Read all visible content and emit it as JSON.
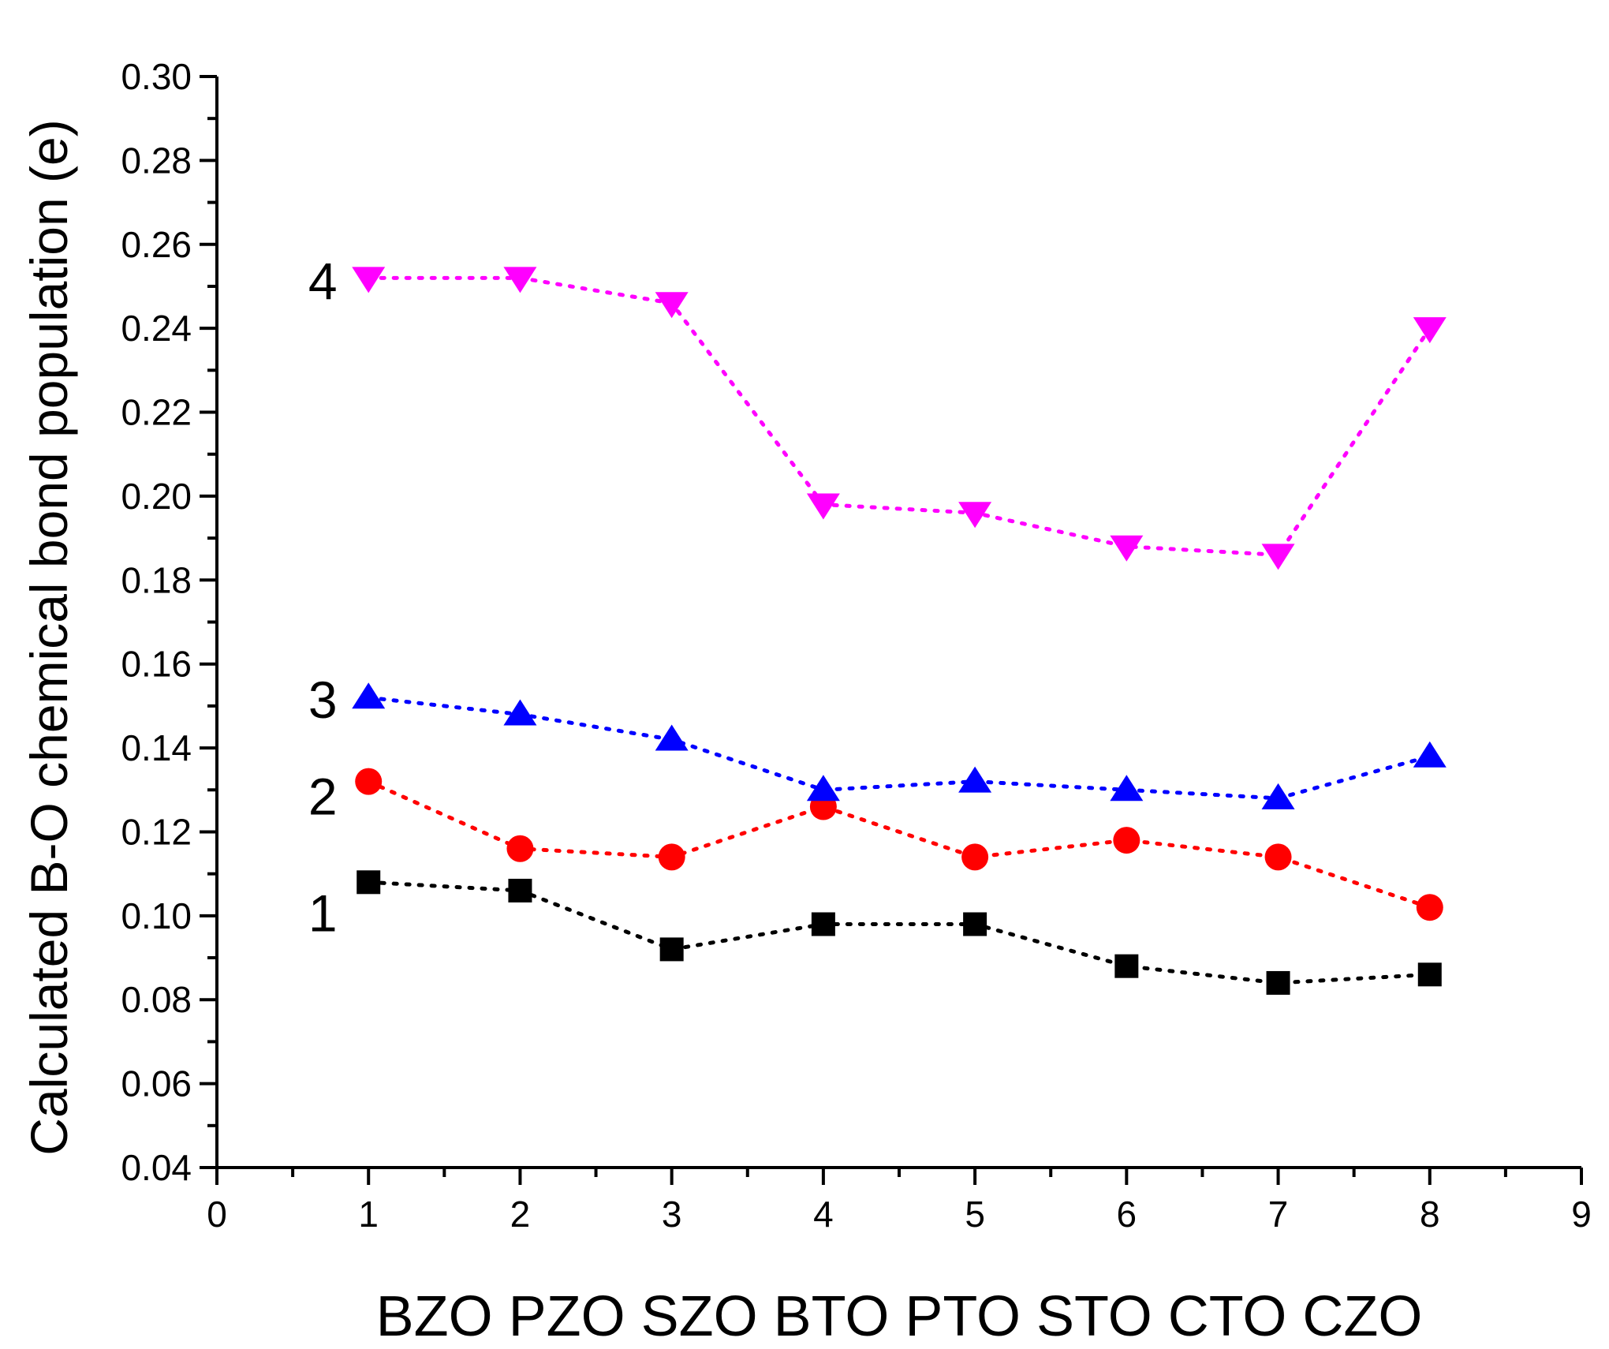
{
  "chart_data": {
    "type": "line",
    "title": "",
    "ylabel": "Calculated B-O chemical bond population (e)",
    "xlabel": "BZO PZO SZO BTO PTO STO CTO CZO",
    "xlim": [
      0,
      9
    ],
    "ylim": [
      0.04,
      0.3
    ],
    "x_ticks": [
      "0",
      "1",
      "2",
      "3",
      "4",
      "5",
      "6",
      "7",
      "8",
      "9"
    ],
    "y_ticks": [
      "0.04",
      "0.06",
      "0.08",
      "0.10",
      "0.12",
      "0.14",
      "0.16",
      "0.18",
      "0.20",
      "0.22",
      "0.24",
      "0.26",
      "0.28",
      "0.30"
    ],
    "x": [
      1,
      2,
      3,
      4,
      5,
      6,
      7,
      8
    ],
    "line_style": "dotted",
    "grid": false,
    "legend": "none",
    "series": [
      {
        "label": "1",
        "marker": "square",
        "color": "#000000",
        "values": [
          0.108,
          0.106,
          0.092,
          0.098,
          0.098,
          0.088,
          0.084,
          0.086
        ]
      },
      {
        "label": "2",
        "marker": "circle",
        "color": "#ff0000",
        "values": [
          0.132,
          0.116,
          0.114,
          0.126,
          0.114,
          0.118,
          0.114,
          0.102
        ]
      },
      {
        "label": "3",
        "marker": "triangle-up",
        "color": "#0000ff",
        "values": [
          0.152,
          0.148,
          0.142,
          0.13,
          0.132,
          0.13,
          0.128,
          0.138
        ]
      },
      {
        "label": "4",
        "marker": "triangle-down",
        "color": "#ff00ff",
        "values": [
          0.252,
          0.252,
          0.246,
          0.198,
          0.196,
          0.188,
          0.186,
          0.24
        ]
      }
    ]
  }
}
